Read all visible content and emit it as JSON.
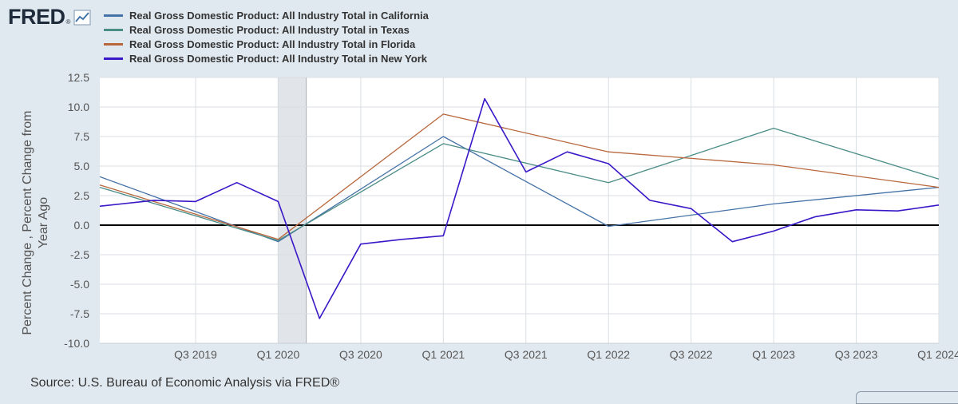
{
  "logo": {
    "text": "FRED",
    "trademark": "®",
    "icon": "line-chart-icon"
  },
  "source": "Source: U.S. Bureau of Economic Analysis via FRED®",
  "colors": {
    "background": "#e1e9f0",
    "plot_background": "#ffffff",
    "recession_shade": "#e1e4e8",
    "zero_line": "#000000"
  },
  "chart_data": {
    "type": "line",
    "title": "",
    "xlabel": "",
    "ylabel": "Percent Change , Percent Change from Year Ago",
    "ylim": [
      -10,
      12.5
    ],
    "yticks": [
      12.5,
      10.0,
      7.5,
      5.0,
      2.5,
      0.0,
      -2.5,
      -5.0,
      -7.5,
      -10.0
    ],
    "ytick_labels": [
      "12.5",
      "10.0",
      "7.5",
      "5.0",
      "2.5",
      "0.0",
      "-2.5",
      "-5.0",
      "-7.5",
      "-10.0"
    ],
    "xlim": [
      2018.92,
      2024.0
    ],
    "xticks": [
      {
        "label": "Q3 2019",
        "t": 2019.5
      },
      {
        "label": "Q1 2020",
        "t": 2020.0
      },
      {
        "label": "Q3 2020",
        "t": 2020.5
      },
      {
        "label": "Q1 2021",
        "t": 2021.0
      },
      {
        "label": "Q3 2021",
        "t": 2021.5
      },
      {
        "label": "Q1 2022",
        "t": 2022.0
      },
      {
        "label": "Q3 2022",
        "t": 2022.5
      },
      {
        "label": "Q1 2023",
        "t": 2023.0
      },
      {
        "label": "Q3 2023",
        "t": 2023.5
      },
      {
        "label": "Q1 2024",
        "t": 2024.0
      }
    ],
    "recession": [
      2020.0,
      2020.17
    ],
    "grid": true,
    "legend_position": "top-left",
    "series": [
      {
        "name": "Real Gross Domestic Product: All Industry Total in California",
        "color": "#4572a7",
        "points": [
          [
            2018.92,
            4.1
          ],
          [
            2020.0,
            -1.4
          ],
          [
            2021.0,
            7.5
          ],
          [
            2022.0,
            -0.1
          ],
          [
            2023.0,
            1.8
          ],
          [
            2024.0,
            3.2
          ]
        ]
      },
      {
        "name": "Real Gross Domestic Product: All Industry Total in Texas",
        "color": "#4a8c86",
        "points": [
          [
            2018.92,
            3.2
          ],
          [
            2020.0,
            -1.3
          ],
          [
            2021.0,
            6.9
          ],
          [
            2022.0,
            3.6
          ],
          [
            2023.0,
            8.2
          ],
          [
            2024.0,
            3.9
          ]
        ]
      },
      {
        "name": "Real Gross Domestic Product: All Industry Total in Florida",
        "color": "#b8673c",
        "points": [
          [
            2018.92,
            3.4
          ],
          [
            2020.0,
            -1.2
          ],
          [
            2021.0,
            9.4
          ],
          [
            2022.0,
            6.2
          ],
          [
            2023.0,
            5.1
          ],
          [
            2024.0,
            3.2
          ]
        ]
      },
      {
        "name": "Real Gross Domestic Product: All Industry Total in New York",
        "color": "#3a18c8",
        "points": [
          [
            2018.92,
            1.6
          ],
          [
            2019.25,
            2.1
          ],
          [
            2019.5,
            2.0
          ],
          [
            2019.75,
            3.6
          ],
          [
            2020.0,
            2.0
          ],
          [
            2020.25,
            -7.9
          ],
          [
            2020.5,
            -1.6
          ],
          [
            2020.75,
            -1.2
          ],
          [
            2021.0,
            -0.9
          ],
          [
            2021.25,
            10.7
          ],
          [
            2021.5,
            4.5
          ],
          [
            2021.75,
            6.2
          ],
          [
            2022.0,
            5.2
          ],
          [
            2022.25,
            2.1
          ],
          [
            2022.5,
            1.4
          ],
          [
            2022.75,
            -1.4
          ],
          [
            2023.0,
            -0.5
          ],
          [
            2023.25,
            0.7
          ],
          [
            2023.5,
            1.3
          ],
          [
            2023.75,
            1.2
          ],
          [
            2024.0,
            1.7
          ]
        ]
      }
    ]
  }
}
